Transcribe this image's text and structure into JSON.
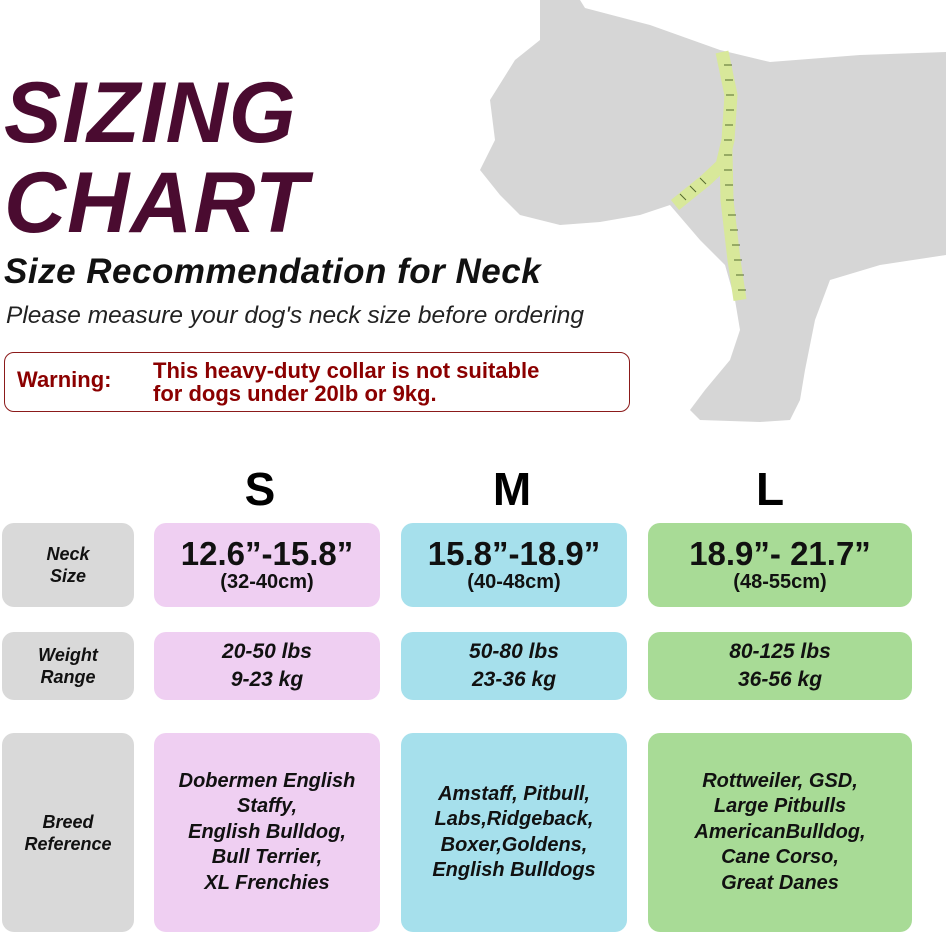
{
  "title_line1": "SIZING",
  "title_line2": "CHART",
  "subtitle": "Size Recommendation for Neck",
  "instruction": "Please measure your dog's neck size before ordering",
  "warning": {
    "label": "Warning:",
    "line1": "This heavy-duty collar is not suitable",
    "line2": "for dogs under 20lb or 9kg.",
    "color": "#8b0000"
  },
  "sizes": [
    "S",
    "M",
    "L"
  ],
  "row_labels": {
    "neck": [
      "Neck",
      "Size"
    ],
    "weight": [
      "Weight",
      "Range"
    ],
    "breed": [
      "Breed",
      "Reference"
    ]
  },
  "columns": [
    {
      "neck_in": "12.6”-15.8”",
      "neck_cm": "(32-40cm)",
      "weight_lbs": "20-50 lbs",
      "weight_kg": "9-23 kg",
      "breeds": [
        "Dobermen English",
        "Staffy,",
        "English Bulldog,",
        "Bull Terrier,",
        "XL Frenchies"
      ],
      "color": "#efcff2"
    },
    {
      "neck_in": "15.8”-18.9”",
      "neck_cm": "(40-48cm)",
      "weight_lbs": "50-80 lbs",
      "weight_kg": "23-36 kg",
      "breeds": [
        "Amstaff, Pitbull,",
        "Labs,Ridgeback,",
        "Boxer,Goldens,",
        "English Bulldogs"
      ],
      "color": "#a6e0ec"
    },
    {
      "neck_in": "18.9”- 21.7”",
      "neck_cm": "(48-55cm)",
      "weight_lbs": "80-125 lbs",
      "weight_kg": "36-56 kg",
      "breeds": [
        "Rottweiler, GSD,",
        "Large Pitbulls",
        "AmericanBulldog,",
        "Cane Corso,",
        "Great Danes"
      ],
      "color": "#a8db96"
    }
  ],
  "colors": {
    "title": "#4a0b30",
    "label_bg": "#d9d9d9",
    "silhouette": "#d6d6d6",
    "tape": "#d8e89a"
  },
  "image": {
    "silhouette": "dog-silhouette-with-measuring-tape"
  }
}
